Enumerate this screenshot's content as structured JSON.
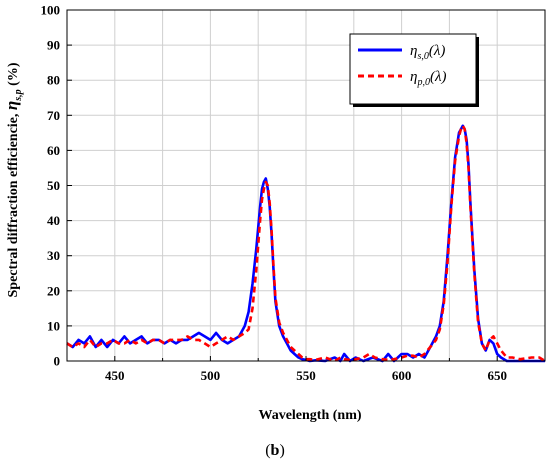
{
  "caption": {
    "open": "(",
    "letter": "b",
    "close": ")"
  },
  "chart_data": {
    "type": "line",
    "xlabel": "Wavelength (nm)",
    "ylabel": {
      "prefix": "Spectral diffraction efficiencie, ",
      "symbol": "η",
      "sub": "s,p",
      "unit": " (%)"
    },
    "xlim": [
      425,
      675
    ],
    "ylim": [
      0,
      100
    ],
    "x_ticks": [
      450,
      500,
      550,
      600,
      650
    ],
    "x_minor_ticks": [
      425,
      475,
      525,
      575,
      625,
      675
    ],
    "y_ticks": [
      0,
      10,
      20,
      30,
      40,
      50,
      60,
      70,
      80,
      90,
      100
    ],
    "grid": true,
    "legend_position": "top-right",
    "series": [
      {
        "name": "η_s,0(λ)",
        "label": {
          "symbol": "η",
          "sub": "s,0",
          "arg": "(λ)"
        },
        "color": "#0000ff",
        "style": "solid",
        "x": [
          425,
          428,
          431,
          434,
          437,
          440,
          443,
          446,
          449,
          452,
          455,
          458,
          461,
          464,
          467,
          470,
          473,
          476,
          479,
          482,
          485,
          488,
          491,
          494,
          497,
          500,
          503,
          506,
          509,
          512,
          515,
          518,
          520,
          522,
          524,
          526,
          527,
          528,
          529,
          530,
          531,
          532,
          533,
          534,
          536,
          538,
          540,
          542,
          544,
          546,
          548,
          550,
          552,
          555,
          560,
          565,
          568,
          570,
          573,
          576,
          580,
          585,
          590,
          593,
          596,
          600,
          603,
          606,
          609,
          612,
          615,
          618,
          620,
          622,
          624,
          626,
          628,
          630,
          631,
          632,
          633,
          634,
          635,
          636,
          638,
          640,
          642,
          644,
          646,
          648,
          650,
          652,
          655,
          658,
          662,
          668,
          672,
          675
        ],
        "y": [
          5,
          4,
          6,
          5,
          7,
          4,
          6,
          4,
          6,
          5,
          7,
          5,
          6,
          7,
          5,
          6,
          6,
          5,
          6,
          5,
          6,
          6,
          7,
          8,
          7,
          6,
          8,
          6,
          5,
          6,
          7,
          10,
          14,
          22,
          32,
          44,
          49,
          51,
          52,
          49,
          44,
          36,
          26,
          17,
          10,
          7,
          5,
          3,
          2,
          1,
          0.5,
          0.3,
          0,
          0.2,
          0,
          1,
          0,
          2,
          0,
          1,
          0,
          1,
          0,
          2,
          0,
          2,
          2,
          1,
          2,
          1,
          4,
          7,
          10,
          17,
          30,
          45,
          58,
          65,
          66,
          67,
          66,
          63,
          56,
          45,
          26,
          12,
          5,
          3,
          6,
          5,
          2,
          1,
          0,
          0,
          0,
          0,
          0,
          0
        ]
      },
      {
        "name": "η_p,0(λ)",
        "label": {
          "symbol": "η",
          "sub": "p,0",
          "arg": "(λ)"
        },
        "color": "#ff0000",
        "style": "dashed",
        "x": [
          425,
          428,
          431,
          434,
          437,
          440,
          443,
          446,
          449,
          452,
          455,
          458,
          461,
          464,
          467,
          470,
          473,
          476,
          479,
          482,
          485,
          488,
          491,
          494,
          497,
          500,
          503,
          506,
          509,
          512,
          515,
          518,
          520,
          522,
          524,
          526,
          527,
          528,
          529,
          530,
          531,
          532,
          533,
          534,
          536,
          538,
          540,
          542,
          544,
          546,
          548,
          550,
          552,
          555,
          560,
          565,
          568,
          570,
          573,
          576,
          580,
          583,
          586,
          590,
          593,
          596,
          600,
          603,
          606,
          609,
          612,
          615,
          618,
          620,
          622,
          624,
          626,
          628,
          630,
          631,
          632,
          633,
          634,
          635,
          636,
          638,
          640,
          642,
          644,
          646,
          648,
          650,
          652,
          655,
          658,
          662,
          668,
          672,
          675
        ],
        "y": [
          5,
          4,
          5,
          4,
          6,
          4,
          5,
          5,
          6,
          5,
          5,
          6,
          5,
          6,
          5,
          6,
          6,
          5,
          6,
          6,
          6,
          7,
          6,
          6,
          5,
          4,
          5,
          6,
          7,
          6,
          7,
          8,
          9,
          15,
          26,
          40,
          46,
          49,
          51,
          50,
          45,
          37,
          27,
          18,
          11,
          8,
          6,
          4,
          3,
          2,
          1,
          0.5,
          0.5,
          0.3,
          1,
          0,
          1,
          0.5,
          0.3,
          0.5,
          1,
          2,
          1,
          0.5,
          0.3,
          0.5,
          1,
          1.5,
          1.5,
          1,
          2,
          4,
          6,
          9,
          16,
          28,
          44,
          57,
          64,
          66,
          67,
          66,
          62,
          55,
          44,
          25,
          11,
          5,
          3,
          6,
          7,
          5,
          3,
          1,
          1,
          0.5,
          1,
          1,
          0
        ]
      }
    ]
  }
}
